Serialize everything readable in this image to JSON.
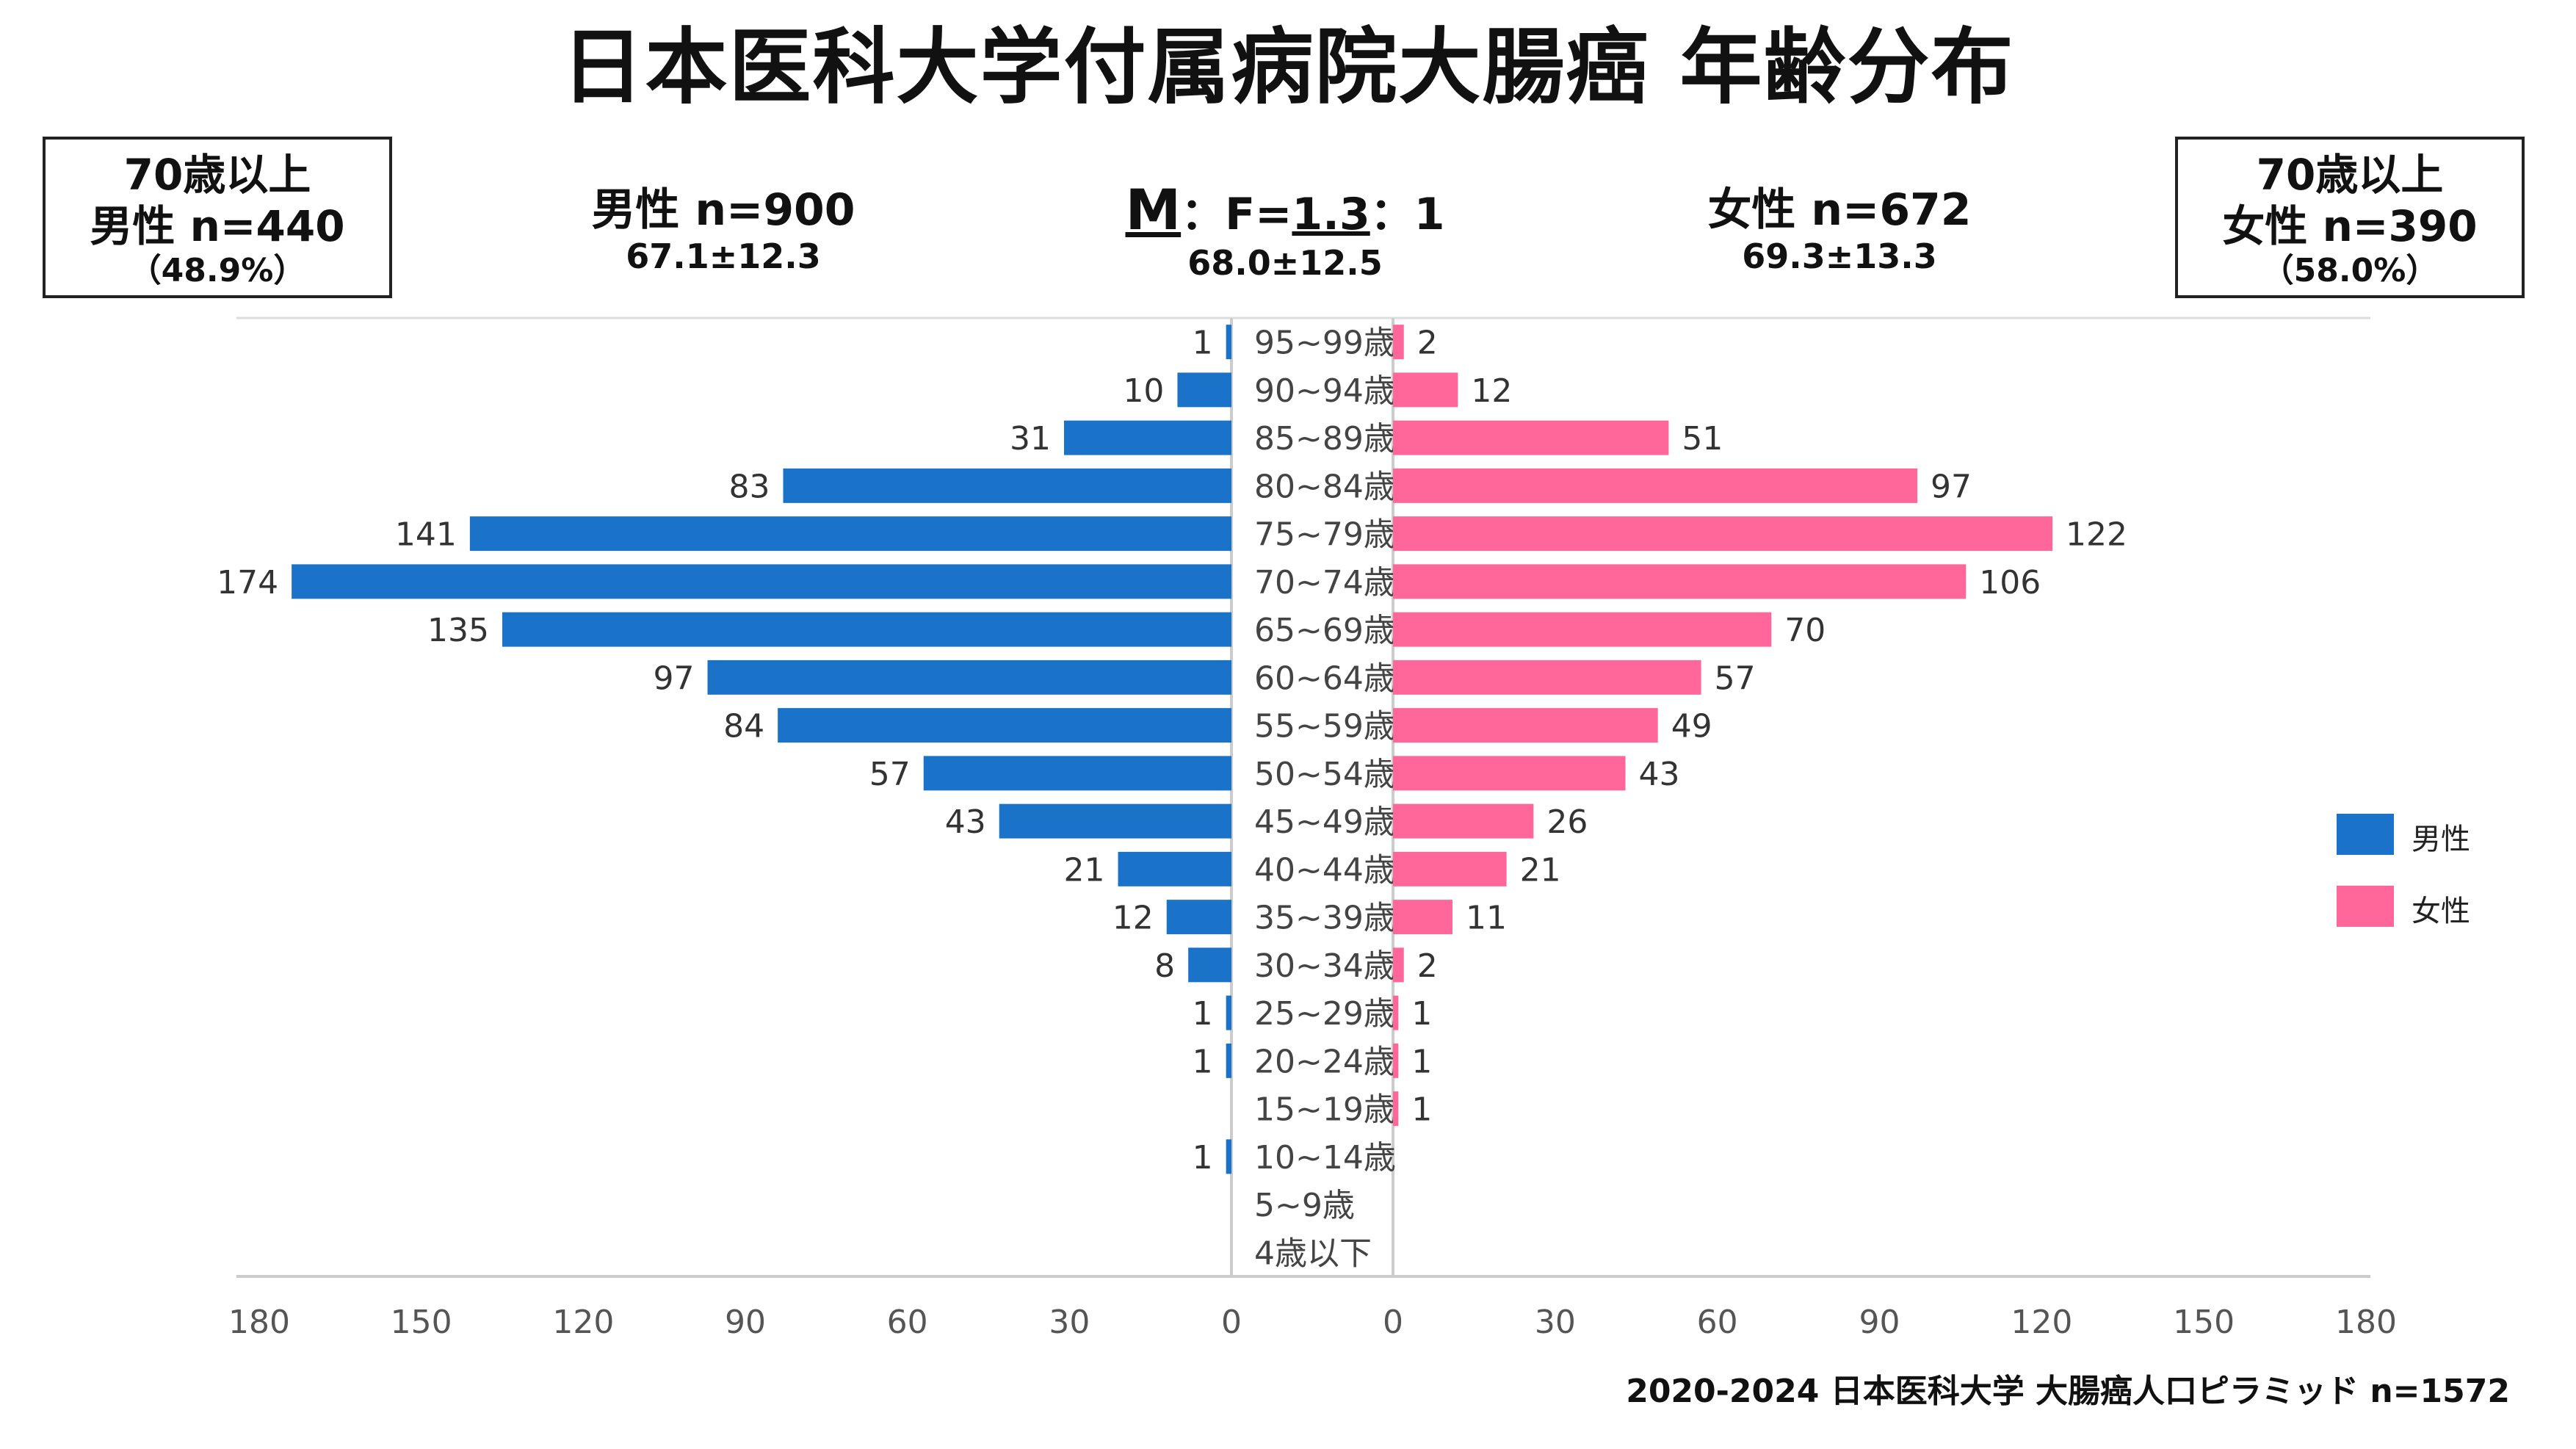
{
  "title": "日本医科大学付属病院大腸癌 年齢分布",
  "left_box": {
    "line1": "70歳以上",
    "line2": "男性 n=440",
    "line3": "（48.9%）"
  },
  "right_box": {
    "line1": "70歳以上",
    "line2": "女性 n=390",
    "line3": "（58.0%）"
  },
  "male_stat": {
    "label": "男性 n=900",
    "mean": "67.1±12.3"
  },
  "female_stat": {
    "label": "女性 n=672",
    "mean": "69.3±13.3"
  },
  "ratio": {
    "m": "M",
    "sep1": "：F=",
    "value": "1.3",
    "sep2": "：1",
    "mean": "68.0±12.5"
  },
  "footer": "2020-2024 日本医科大学 大腸癌人口ピラミッド n=1572",
  "colors": {
    "male": "#1a73c9",
    "female": "#ff6699",
    "axis": "#cccccc",
    "text": "#333333"
  },
  "chart_data": {
    "type": "bar",
    "orientation": "horizontal-pyramid",
    "categories": [
      "95~99歳",
      "90~94歳",
      "85~89歳",
      "80~84歳",
      "75~79歳",
      "70~74歳",
      "65~69歳",
      "60~64歳",
      "55~59歳",
      "50~54歳",
      "45~49歳",
      "40~44歳",
      "35~39歳",
      "30~34歳",
      "25~29歳",
      "20~24歳",
      "15~19歳",
      "10~14歳",
      "5~9歳",
      "4歳以下"
    ],
    "series": [
      {
        "name": "男性",
        "values": [
          1,
          10,
          31,
          83,
          141,
          174,
          135,
          97,
          84,
          57,
          43,
          21,
          12,
          8,
          1,
          1,
          0,
          1,
          0,
          0
        ]
      },
      {
        "name": "女性",
        "values": [
          2,
          12,
          51,
          97,
          122,
          106,
          70,
          57,
          49,
          43,
          26,
          21,
          11,
          2,
          1,
          1,
          1,
          0,
          0,
          0
        ]
      }
    ],
    "data_labels": {
      "male": [
        "1",
        "10",
        "31",
        "83",
        "141",
        "174",
        "135",
        "97",
        "84",
        "57",
        "43",
        "21",
        "12",
        "8",
        "1",
        "1",
        "",
        "1",
        "",
        ""
      ],
      "female": [
        "2",
        "12",
        "51",
        "97",
        "122",
        "106",
        "70",
        "57",
        "49",
        "43",
        "26",
        "21",
        "11",
        "2",
        "1",
        "1",
        "1",
        "",
        "",
        ""
      ]
    },
    "xlim": [
      0,
      180
    ],
    "xticks_left": [
      "180",
      "150",
      "120",
      "90",
      "60",
      "30",
      "0"
    ],
    "xticks_right": [
      "0",
      "30",
      "60",
      "90",
      "120",
      "150",
      "180"
    ],
    "tick_values": [
      180,
      150,
      120,
      90,
      60,
      30,
      0
    ],
    "legend": {
      "position": "right",
      "items": [
        "男性",
        "女性"
      ]
    }
  }
}
